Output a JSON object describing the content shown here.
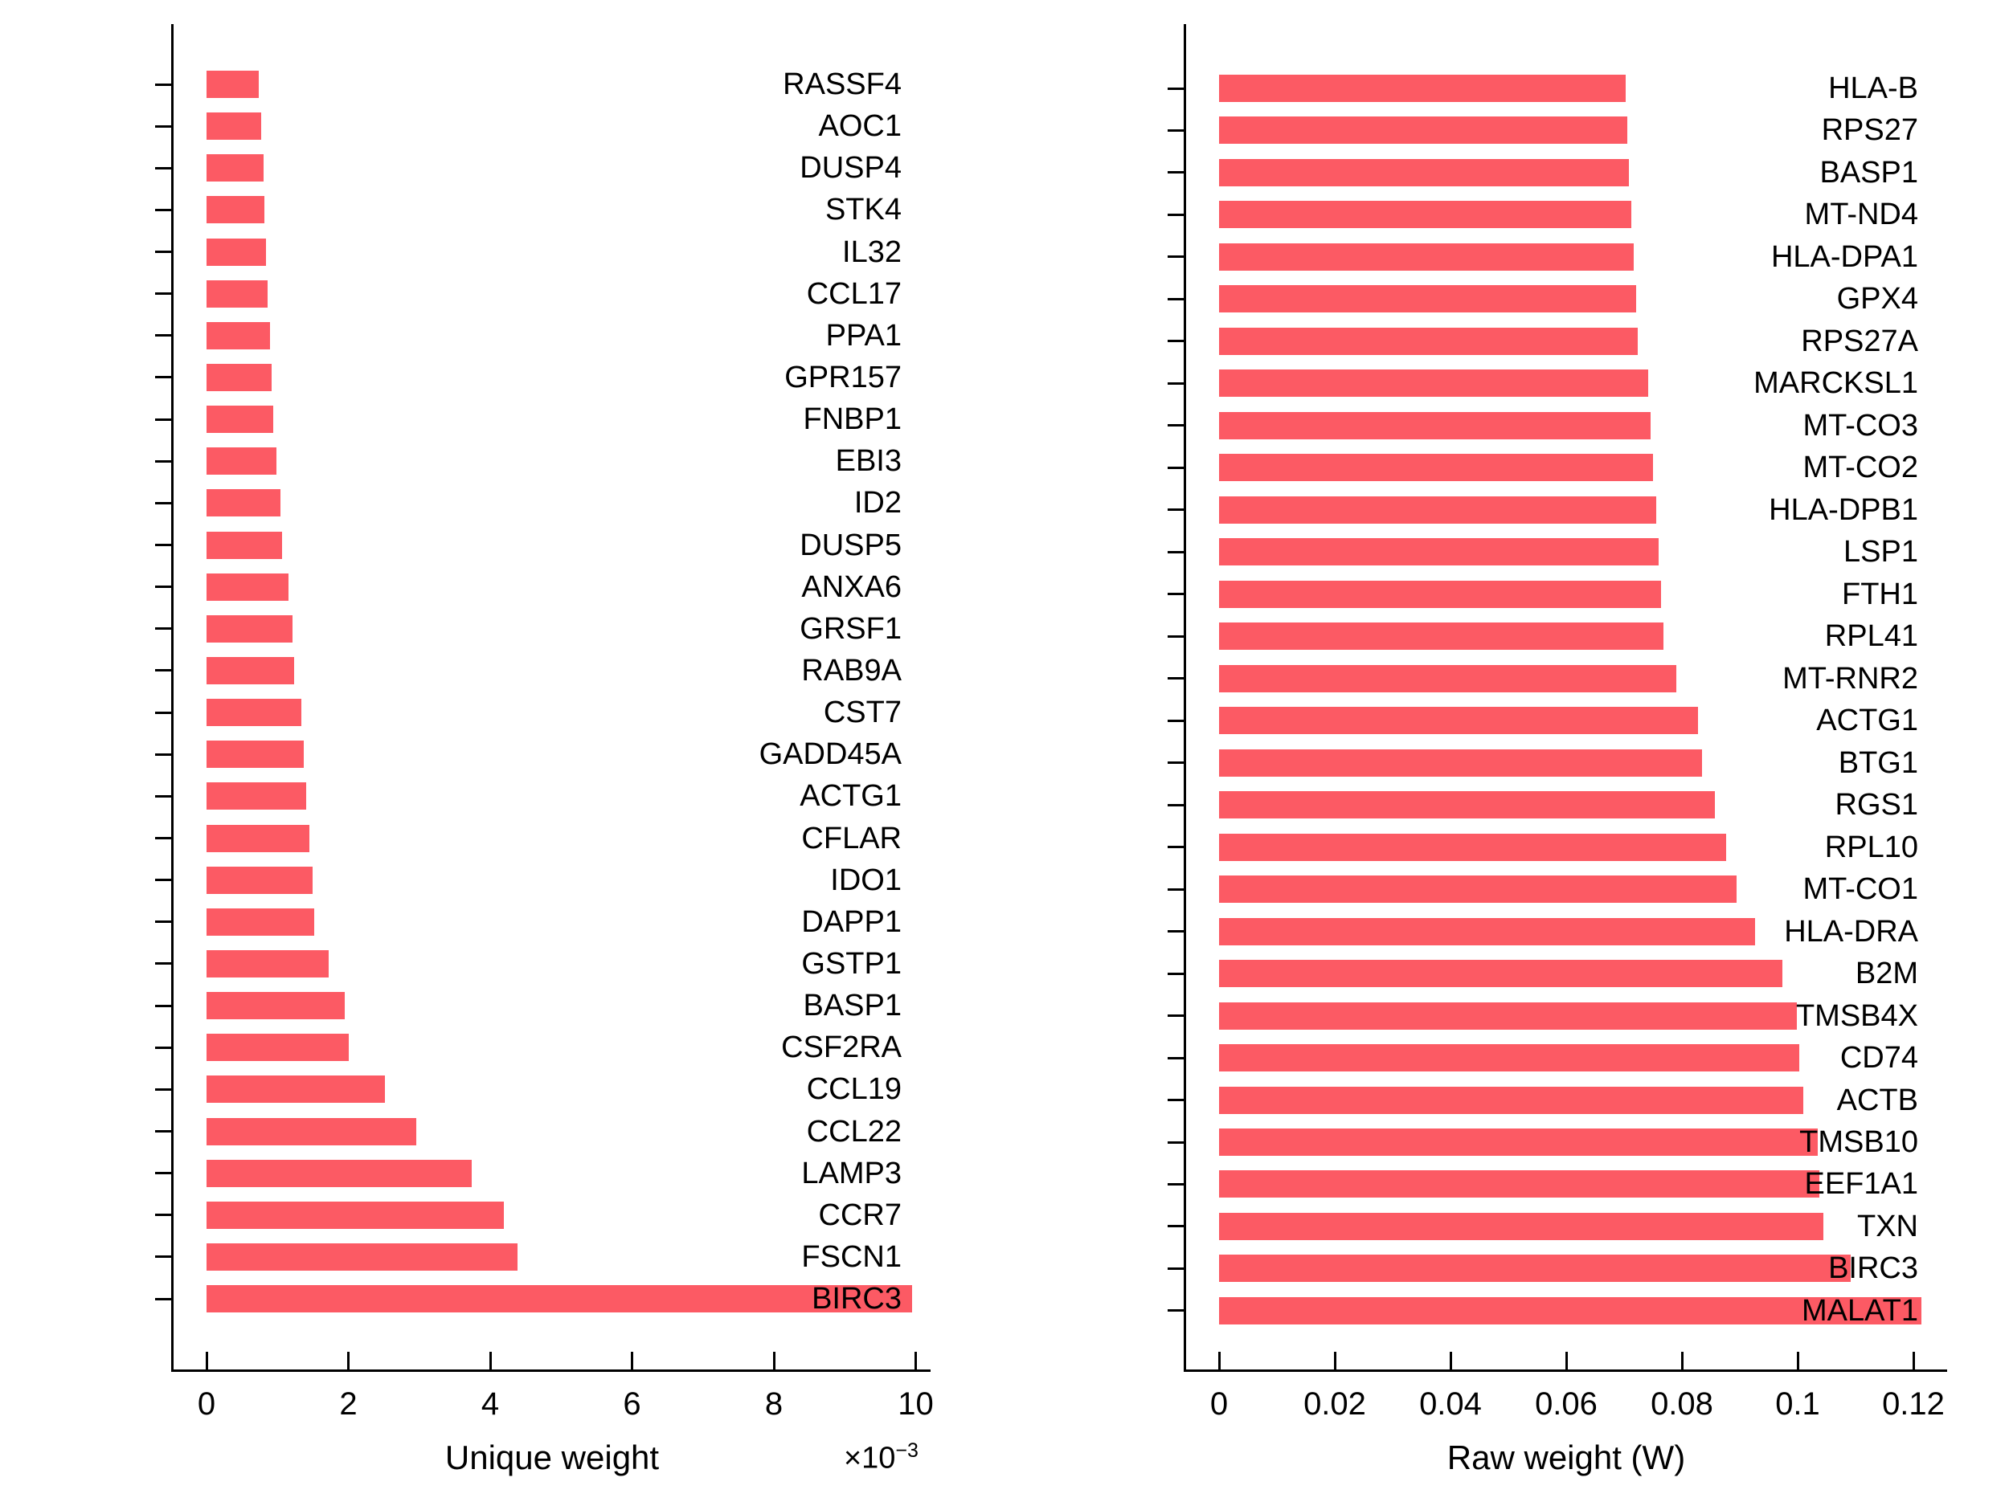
{
  "chart_data": [
    {
      "type": "bar",
      "orientation": "horizontal",
      "title": "",
      "xlabel": "Unique weight",
      "offset": {
        "base": "×10",
        "exp": "−3"
      },
      "value_unit_multiplier": 0.001,
      "xticks": [
        0,
        2,
        4,
        6,
        8,
        10
      ],
      "xtick_labels": [
        "0",
        "2",
        "4",
        "6",
        "8",
        "10"
      ],
      "xlim": [
        -0.465,
        10.21
      ],
      "grid": false,
      "legend": "none",
      "bar_color": "#FC5A64",
      "categories": [
        "RASSF4",
        "AOC1",
        "DUSP4",
        "STK4",
        "IL32",
        "CCL17",
        "PPA1",
        "GPR157",
        "FNBP1",
        "EBI3",
        "ID2",
        "DUSP5",
        "ANXA6",
        "GRSF1",
        "RAB9A",
        "CST7",
        "GADD45A",
        "ACTG1",
        "CFLAR",
        "IDO1",
        "DAPP1",
        "GSTP1",
        "BASP1",
        "CSF2RA",
        "CCL19",
        "CCL22",
        "LAMP3",
        "CCR7",
        "FSCN1",
        "BIRC3"
      ],
      "values": [
        0.74,
        0.77,
        0.8,
        0.82,
        0.84,
        0.86,
        0.89,
        0.92,
        0.94,
        0.99,
        1.04,
        1.06,
        1.16,
        1.21,
        1.23,
        1.34,
        1.37,
        1.4,
        1.45,
        1.49,
        1.52,
        1.72,
        1.95,
        2.0,
        2.51,
        2.96,
        3.74,
        4.19,
        4.38,
        9.95
      ]
    },
    {
      "type": "bar",
      "orientation": "horizontal",
      "title": "",
      "xlabel": "Raw weight (W)",
      "value_unit_multiplier": 1,
      "xticks": [
        0,
        0.02,
        0.04,
        0.06,
        0.08,
        0.1,
        0.12
      ],
      "xtick_labels": [
        "0",
        "0.02",
        "0.04",
        "0.06",
        "0.08",
        "0.1",
        "0.12"
      ],
      "xlim": [
        -0.0057,
        0.1258
      ],
      "grid": false,
      "legend": "none",
      "bar_color": "#FC5A64",
      "categories": [
        "HLA-B",
        "RPS27",
        "BASP1",
        "MT-ND4",
        "HLA-DPA1",
        "GPX4",
        "RPS27A",
        "MARCKSL1",
        "MT-CO3",
        "MT-CO2",
        "HLA-DPB1",
        "LSP1",
        "FTH1",
        "RPL41",
        "MT-RNR2",
        "ACTG1",
        "BTG1",
        "RGS1",
        "RPL10",
        "MT-CO1",
        "HLA-DRA",
        "B2M",
        "TMSB4X",
        "CD74",
        "ACTB",
        "TMSB10",
        "EEF1A1",
        "TXN",
        "BIRC3",
        "MALAT1"
      ],
      "values": [
        0.0703,
        0.0705,
        0.0708,
        0.0712,
        0.0716,
        0.0721,
        0.0724,
        0.0741,
        0.0746,
        0.075,
        0.0755,
        0.0759,
        0.0764,
        0.0768,
        0.079,
        0.0828,
        0.0835,
        0.0857,
        0.0876,
        0.0895,
        0.0927,
        0.0973,
        0.0998,
        0.1003,
        0.1009,
        0.1034,
        0.1037,
        0.1044,
        0.1091,
        0.1214
      ]
    }
  ]
}
